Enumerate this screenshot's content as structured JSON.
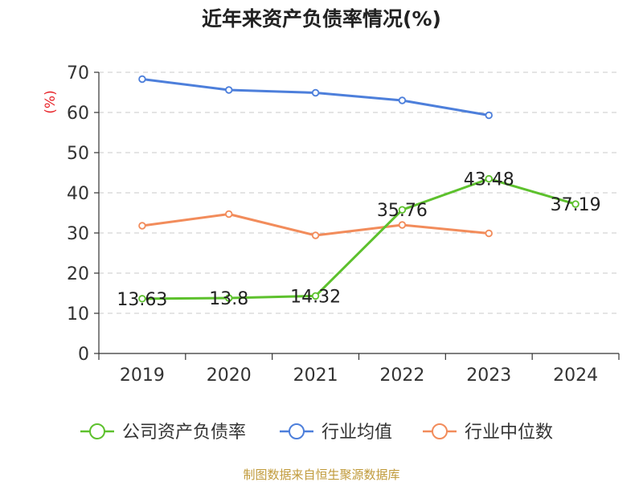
{
  "chart_data": {
    "type": "line",
    "title": "近年来资产负债率情况(%)",
    "ylabel": "(%)",
    "xlabel": "",
    "categories": [
      "2019",
      "2020",
      "2021",
      "2022",
      "2023",
      "2024"
    ],
    "ylim": [
      0,
      70
    ],
    "yticks": [
      0,
      10,
      20,
      30,
      40,
      50,
      60,
      70
    ],
    "grid": true,
    "legend_position": "bottom",
    "series": [
      {
        "name": "公司资产负债率",
        "color": "#5dc12d",
        "values": [
          13.63,
          13.8,
          14.32,
          35.76,
          43.48,
          37.19
        ],
        "labels": [
          "13.63",
          "13.8",
          "14.32",
          "35.76",
          "43.48",
          "37.19"
        ]
      },
      {
        "name": "行业均值",
        "color": "#4d7fdb",
        "values": [
          68.3,
          65.6,
          64.9,
          63.0,
          59.3,
          null
        ]
      },
      {
        "name": "行业中位数",
        "color": "#f28c5b",
        "values": [
          31.8,
          34.7,
          29.4,
          32.0,
          29.9,
          null
        ]
      }
    ]
  },
  "source": "制图数据来自恒生聚源数据库"
}
